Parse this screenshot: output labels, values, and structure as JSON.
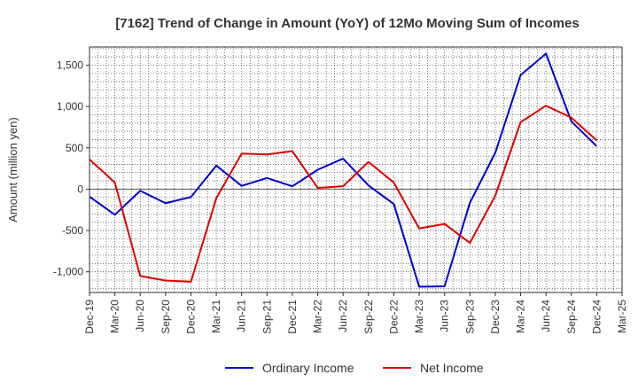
{
  "chart_data": {
    "type": "line",
    "title": "[7162]  Trend of Change in Amount (YoY) of 12Mo Moving Sum of Incomes",
    "xlabel": "",
    "ylabel": "Amount (million yen)",
    "categories": [
      "Dec-19",
      "Mar-20",
      "Jun-20",
      "Sep-20",
      "Dec-20",
      "Mar-21",
      "Jun-21",
      "Sep-21",
      "Dec-21",
      "Mar-22",
      "Jun-22",
      "Sep-22",
      "Dec-22",
      "Mar-23",
      "Jun-23",
      "Sep-23",
      "Dec-23",
      "Mar-24",
      "Jun-24",
      "Sep-24",
      "Dec-24",
      "Mar-25"
    ],
    "yticks": [
      -1000,
      -500,
      0,
      500,
      1000,
      1500
    ],
    "ytick_labels": [
      "-1,000",
      "-500",
      "0",
      "500",
      "1,000",
      "1,500"
    ],
    "ylim": [
      -1250,
      1720
    ],
    "grid": true,
    "legend_position": "bottom",
    "series": [
      {
        "name": "Ordinary Income",
        "color": "#0000cc",
        "values": [
          -90,
          -310,
          -20,
          -170,
          -95,
          285,
          40,
          135,
          35,
          235,
          370,
          45,
          -180,
          -1180,
          -1175,
          -165,
          440,
          1380,
          1640,
          820,
          520,
          null
        ]
      },
      {
        "name": "Net Income",
        "color": "#dd0000",
        "values": [
          360,
          80,
          -1050,
          -1105,
          -1120,
          -110,
          430,
          420,
          460,
          15,
          35,
          330,
          80,
          -475,
          -420,
          -650,
          -80,
          810,
          1010,
          865,
          590,
          null
        ]
      }
    ]
  }
}
